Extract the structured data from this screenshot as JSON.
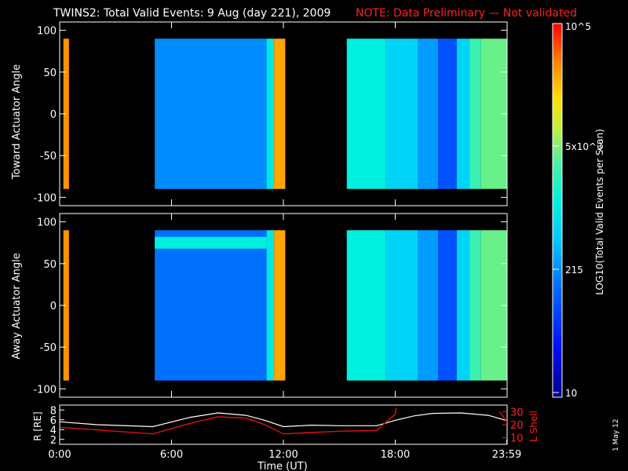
{
  "title": "TWINS2: Total Valid Events:  9 Aug (day 221), 2009",
  "note": "NOTE: Data Preliminary — Not validated",
  "side_label": "1 May 12",
  "colors": {
    "background": "#000000",
    "axis": "#ffffff",
    "note": "#ff2020",
    "lshell": "#e01010",
    "radius": "#ffffff"
  },
  "chart_data": [
    {
      "type": "heatmap",
      "ylabel": "Toward Actuator Angle",
      "y_ticks": [
        100,
        50,
        0,
        -50,
        -100
      ],
      "ylim": [
        -110,
        110
      ],
      "x_range_hours": [
        0,
        24
      ],
      "angle_range": [
        -90,
        90
      ],
      "segments": [
        {
          "start": 0.2,
          "end": 0.5,
          "level": 0.88
        },
        {
          "start": 5.1,
          "end": 11.1,
          "level": 0.34
        },
        {
          "start": 11.1,
          "end": 11.5,
          "level": 0.5
        },
        {
          "start": 11.5,
          "end": 12.1,
          "level": 0.86
        },
        {
          "start": 15.4,
          "end": 17.5,
          "level": 0.52
        },
        {
          "start": 17.5,
          "end": 19.2,
          "level": 0.45
        },
        {
          "start": 19.2,
          "end": 20.3,
          "level": 0.36
        },
        {
          "start": 20.3,
          "end": 21.3,
          "level": 0.25
        },
        {
          "start": 21.3,
          "end": 22.0,
          "level": 0.45
        },
        {
          "start": 22.0,
          "end": 22.6,
          "level": 0.6
        },
        {
          "start": 22.6,
          "end": 24.0,
          "level": 0.65
        }
      ]
    },
    {
      "type": "heatmap",
      "ylabel": "Away Actuator Angle",
      "y_ticks": [
        100,
        50,
        0,
        -50,
        -100
      ],
      "ylim": [
        -110,
        110
      ],
      "x_range_hours": [
        0,
        24
      ],
      "angle_range": [
        -90,
        90
      ],
      "segments": [
        {
          "start": 0.2,
          "end": 0.5,
          "level": 0.88
        },
        {
          "start": 5.1,
          "end": 11.1,
          "level": 0.3
        },
        {
          "start": 11.1,
          "end": 11.5,
          "level": 0.5
        },
        {
          "start": 11.5,
          "end": 12.1,
          "level": 0.86
        },
        {
          "start": 15.4,
          "end": 17.5,
          "level": 0.52
        },
        {
          "start": 17.5,
          "end": 19.2,
          "level": 0.45
        },
        {
          "start": 19.2,
          "end": 20.3,
          "level": 0.36
        },
        {
          "start": 20.3,
          "end": 21.3,
          "level": 0.25
        },
        {
          "start": 21.3,
          "end": 22.0,
          "level": 0.45
        },
        {
          "start": 22.0,
          "end": 22.6,
          "level": 0.6
        },
        {
          "start": 22.6,
          "end": 24.0,
          "level": 0.65
        }
      ],
      "band": {
        "start": 5.1,
        "end": 11.1,
        "angle_min": 68,
        "angle_max": 82,
        "level": 0.52
      }
    },
    {
      "type": "line",
      "xlabel": "Time (UT)",
      "x_ticks": [
        "0:00",
        "6:00",
        "12:00",
        "18:00",
        "23:59"
      ],
      "x_tick_hours": [
        0,
        6,
        12,
        18,
        23.98
      ],
      "ylabel_left": "R [RE]",
      "ylabel_right": "L Shell",
      "left_ticks": [
        2,
        4,
        6,
        8
      ],
      "right_ticks": [
        10,
        20,
        30
      ],
      "series": [
        {
          "axis": "left",
          "x": [
            0,
            2,
            5,
            7,
            8.5,
            10,
            11,
            12,
            13.5,
            15,
            17,
            18,
            19,
            20,
            21.5,
            23,
            24
          ],
          "y": [
            5.6,
            5.0,
            4.6,
            6.5,
            7.4,
            6.9,
            5.9,
            4.6,
            4.9,
            4.8,
            4.8,
            5.9,
            6.8,
            7.3,
            7.4,
            6.9,
            5.8
          ]
        },
        {
          "axis": "right",
          "x": [
            0,
            5,
            7,
            8.5,
            10,
            11,
            12,
            13.5,
            15,
            17,
            17.5,
            18,
            18.05
          ],
          "y": [
            18,
            13,
            21,
            26,
            25,
            20,
            13,
            14,
            15,
            15.5,
            22,
            28,
            33
          ]
        },
        {
          "axis": "right",
          "x": [
            23.6,
            24
          ],
          "y": [
            30,
            22
          ]
        }
      ]
    }
  ],
  "colorbar": {
    "label": "LOG10(Total Valid Events per Scan)",
    "ticks": [
      "10",
      "215",
      "5x10^3",
      "10^5"
    ]
  }
}
